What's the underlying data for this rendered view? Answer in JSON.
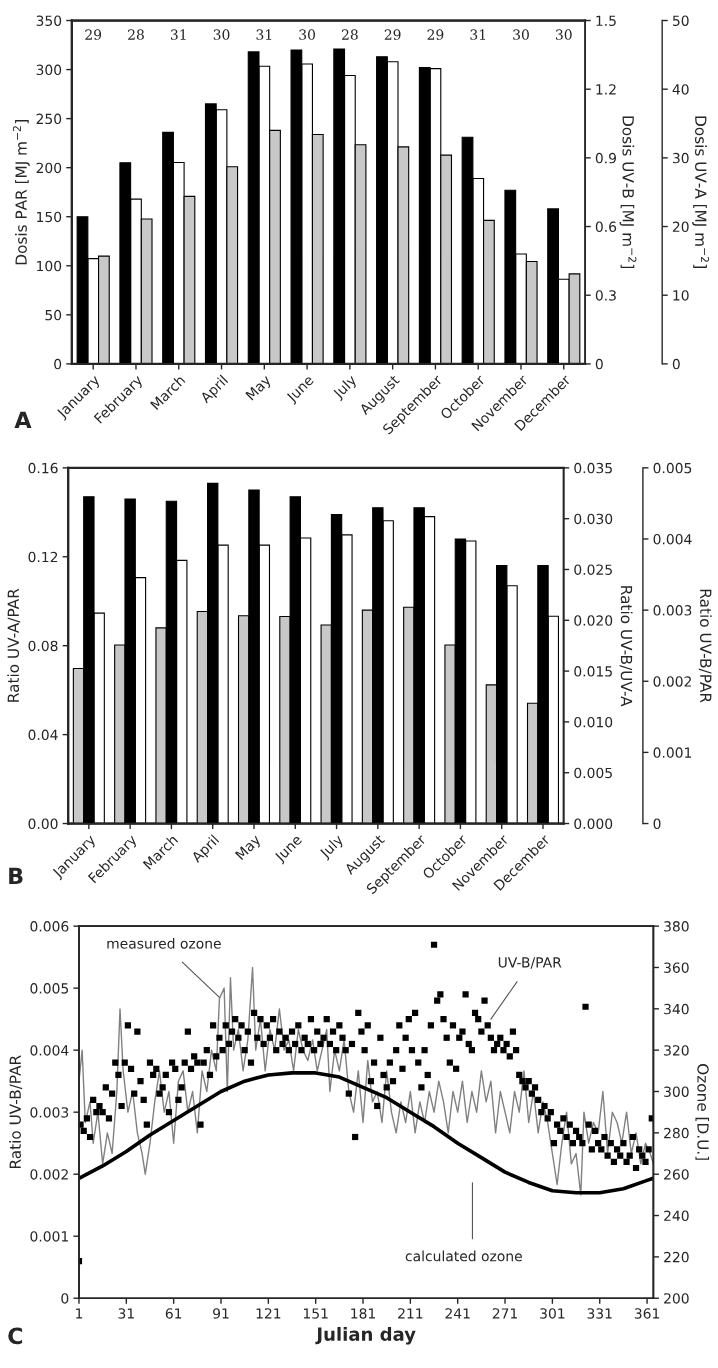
{
  "chart_data": [
    {
      "type": "bar",
      "categories": [
        "January",
        "February",
        "March",
        "April",
        "May",
        "June",
        "July",
        "August",
        "September",
        "October",
        "November",
        "December"
      ],
      "series": [
        {
          "color": "#000000",
          "axis": "y",
          "values": [
            150,
            205,
            236,
            265,
            318,
            320,
            321,
            313,
            302,
            231,
            177,
            158
          ]
        },
        {
          "color": "#ffffff",
          "axis": "y2",
          "values": [
            0.46,
            0.72,
            0.88,
            1.11,
            1.3,
            1.31,
            1.26,
            1.32,
            1.29,
            0.81,
            0.48,
            0.37
          ]
        },
        {
          "color": "#c8c8c8",
          "axis": "y3",
          "values": [
            15.7,
            21.1,
            24.4,
            28.7,
            34.0,
            33.4,
            31.9,
            31.6,
            30.4,
            20.9,
            14.9,
            13.1
          ]
        }
      ],
      "ylabel": "Dosis PAR [MJ m$^{−2}$]",
      "y2label": "Dosis UV-B [MJ m$^{−2}$]",
      "y3label": "Dosis UV-A [MJ m$^{−2}$]",
      "ylim": [
        0,
        350
      ],
      "yticks": [
        0,
        50,
        100,
        150,
        200,
        250,
        300,
        350
      ],
      "y2lim": [
        0,
        1.5
      ],
      "y2ticks": [
        0,
        0.3,
        0.6,
        0.9,
        1.2,
        1.5
      ],
      "y3lim": [
        0,
        50
      ],
      "y3ticks": [
        0,
        10,
        20,
        30,
        40,
        50
      ],
      "annotations": [
        "A",
        "29",
        "28",
        "31",
        "30",
        "31",
        "30",
        "28",
        "29",
        "29",
        "31",
        "30",
        "30"
      ]
    },
    {
      "type": "bar",
      "categories": [
        "January",
        "February",
        "March",
        "April",
        "May",
        "June",
        "July",
        "August",
        "September",
        "October",
        "November",
        "December"
      ],
      "series": [
        {
          "color": "#c8c8c8",
          "axis": "y3",
          "values": [
            0.00218,
            0.00251,
            0.00275,
            0.00298,
            0.00292,
            0.00291,
            0.00279,
            0.003,
            0.00304,
            0.00251,
            0.00195,
            0.00169
          ]
        },
        {
          "color": "#000000",
          "axis": "y",
          "values": [
            0.147,
            0.146,
            0.145,
            0.153,
            0.15,
            0.147,
            0.139,
            0.142,
            0.142,
            0.128,
            0.116,
            0.116
          ]
        },
        {
          "color": "#ffffff",
          "axis": "y2",
          "values": [
            0.0207,
            0.0242,
            0.0259,
            0.0274,
            0.0274,
            0.0281,
            0.0284,
            0.0298,
            0.0302,
            0.0278,
            0.0234,
            0.0204
          ]
        }
      ],
      "ylabel": "Ratio UV-A/PAR",
      "y2label": "Ratio UV-B/UV-A",
      "y3label": "Ratio UV-B/PAR",
      "ylim": [
        0,
        0.16
      ],
      "yticks": [
        {
          "value": 0,
          "label": "0.00"
        },
        {
          "value": 0.04,
          "label": "0.04"
        },
        {
          "value": 0.08,
          "label": "0.08"
        },
        {
          "value": 0.12,
          "label": "0.12"
        },
        {
          "value": 0.16,
          "label": "0.16"
        }
      ],
      "y2lim": [
        0,
        0.035
      ],
      "y2ticks": [
        {
          "value": 0,
          "label": "0.000"
        },
        {
          "value": 0.005,
          "label": "0.005"
        },
        {
          "value": 0.01,
          "label": "0.010"
        },
        {
          "value": 0.015,
          "label": "0.015"
        },
        {
          "value": 0.02,
          "label": "0.020"
        },
        {
          "value": 0.025,
          "label": "0.025"
        },
        {
          "value": 0.03,
          "label": "0.030"
        },
        {
          "value": 0.035,
          "label": "0.035"
        }
      ],
      "y3lim": [
        0,
        0.005
      ],
      "y3ticks": [
        0,
        0.001,
        0.002,
        0.003,
        0.004,
        0.005
      ],
      "annotations": [
        "B"
      ]
    },
    {
      "type": "scatter",
      "xlabel": "Julian day",
      "ylabel": "Ratio UV-B/PAR",
      "y2label": "Ozone [D.U.]",
      "xlim": [
        1,
        365
      ],
      "xticks": [
        1,
        31,
        61,
        91,
        121,
        151,
        181,
        211,
        241,
        271,
        301,
        331,
        361
      ],
      "ylim": [
        0,
        0.006
      ],
      "yticks": [
        0,
        0.001,
        0.002,
        0.003,
        0.004,
        0.005,
        0.006
      ],
      "y2lim": [
        200,
        380
      ],
      "y2ticks": [
        200,
        220,
        240,
        260,
        280,
        300,
        320,
        340,
        360,
        380
      ],
      "series": [
        {
          "type": "scatter",
          "marker": "square",
          "color": "#000000",
          "axis": "y",
          "x": [
            1,
            2,
            4,
            6,
            8,
            10,
            12,
            14,
            16,
            18,
            20,
            22,
            24,
            26,
            28,
            30,
            32,
            34,
            36,
            38,
            40,
            42,
            44,
            46,
            48,
            50,
            52,
            54,
            56,
            58,
            60,
            62,
            64,
            66,
            68,
            70,
            72,
            74,
            76,
            78,
            80,
            82,
            84,
            86,
            88,
            90,
            92,
            94,
            96,
            98,
            100,
            102,
            104,
            106,
            108,
            110,
            112,
            114,
            116,
            118,
            120,
            122,
            124,
            126,
            128,
            130,
            132,
            134,
            136,
            138,
            140,
            142,
            144,
            146,
            148,
            150,
            152,
            154,
            156,
            158,
            160,
            162,
            164,
            166,
            168,
            170,
            172,
            174,
            176,
            178,
            180,
            182,
            184,
            186,
            188,
            190,
            192,
            194,
            196,
            198,
            200,
            202,
            204,
            206,
            208,
            210,
            212,
            214,
            216,
            218,
            220,
            222,
            224,
            226,
            228,
            230,
            232,
            234,
            236,
            238,
            240,
            242,
            244,
            246,
            248,
            250,
            252,
            254,
            256,
            258,
            260,
            262,
            264,
            266,
            268,
            270,
            272,
            274,
            276,
            278,
            280,
            282,
            284,
            286,
            288,
            290,
            292,
            294,
            296,
            298,
            300,
            302,
            304,
            306,
            308,
            310,
            312,
            314,
            316,
            318,
            320,
            322,
            324,
            326,
            328,
            330,
            332,
            334,
            336,
            338,
            340,
            342,
            344,
            346,
            348,
            350,
            352,
            354,
            356,
            358,
            360,
            362,
            364
          ],
          "values": [
            0.0006,
            0.0028,
            0.0027,
            0.0029,
            0.0026,
            0.0032,
            0.003,
            0.0031,
            0.003,
            0.0034,
            0.0029,
            0.0033,
            0.0038,
            0.0036,
            0.0031,
            0.0038,
            0.0044,
            0.0037,
            0.0033,
            0.0043,
            0.0035,
            0.0032,
            0.0028,
            0.0038,
            0.0036,
            0.0037,
            0.0033,
            0.0034,
            0.0036,
            0.003,
            0.0038,
            0.0037,
            0.0032,
            0.0034,
            0.0038,
            0.0043,
            0.0037,
            0.0039,
            0.0038,
            0.0028,
            0.0038,
            0.004,
            0.0036,
            0.0044,
            0.0039,
            0.0042,
            0.004,
            0.0044,
            0.0041,
            0.0043,
            0.0045,
            0.0042,
            0.0044,
            0.004,
            0.0043,
            0.0038,
            0.0046,
            0.0042,
            0.0045,
            0.0041,
            0.0044,
            0.0042,
            0.0045,
            0.004,
            0.0043,
            0.0041,
            0.0042,
            0.004,
            0.0043,
            0.0041,
            0.0044,
            0.004,
            0.0042,
            0.0041,
            0.0045,
            0.004,
            0.0043,
            0.0041,
            0.0042,
            0.0045,
            0.0041,
            0.0043,
            0.004,
            0.0044,
            0.0042,
            0.004,
            0.0033,
            0.0041,
            0.0026,
            0.0046,
            0.0043,
            0.004,
            0.0044,
            0.0035,
            0.0038,
            0.0031,
            0.0042,
            0.0036,
            0.0034,
            0.0038,
            0.0035,
            0.004,
            0.0044,
            0.0037,
            0.0042,
            0.0045,
            0.004,
            0.0046,
            0.0038,
            0.0034,
            0.004,
            0.0036,
            0.0044,
            0.0057,
            0.0048,
            0.0049,
            0.0045,
            0.0042,
            0.0038,
            0.0044,
            0.0037,
            0.0042,
            0.0043,
            0.0049,
            0.0041,
            0.004,
            0.0046,
            0.0045,
            0.0043,
            0.0048,
            0.0044,
            0.0042,
            0.004,
            0.0041,
            0.0042,
            0.004,
            0.0041,
            0.0039,
            0.0043,
            0.004,
            0.0036,
            0.0035,
            0.0034,
            0.0035,
            0.0033,
            0.0034,
            0.0032,
            0.003,
            0.0031,
            0.0029,
            0.003,
            0.0025,
            0.0028,
            0.0027,
            0.0029,
            0.0026,
            0.0028,
            0.0025,
            0.0027,
            0.0026,
            0.0025,
            0.0047,
            0.0028,
            0.0024,
            0.0027,
            0.0025,
            0.0024,
            0.0026,
            0.0023,
            0.0025,
            0.0022,
            0.0024,
            0.0023,
            0.0025,
            0.0022,
            0.0023,
            0.0026,
            0.0021,
            0.0024,
            0.0023,
            0.0022,
            0.0024,
            0.0029
          ]
        },
        {
          "type": "line",
          "color": "#808080",
          "axis": "y2",
          "x": [
            1,
            3,
            5,
            8,
            10,
            13,
            16,
            19,
            22,
            25,
            27,
            29,
            32,
            35,
            38,
            41,
            43,
            46,
            49,
            52,
            55,
            58,
            61,
            64,
            67,
            70,
            73,
            76,
            79,
            82,
            85,
            88,
            90,
            93,
            95,
            97,
            99,
            102,
            105,
            108,
            111,
            113,
            116,
            119,
            122,
            125,
            128,
            131,
            134,
            137,
            140,
            143,
            146,
            149,
            152,
            155,
            158,
            160,
            163,
            166,
            169,
            172,
            175,
            178,
            181,
            184,
            187,
            190,
            193,
            196,
            199,
            202,
            205,
            208,
            211,
            214,
            217,
            220,
            223,
            226,
            229,
            232,
            235,
            238,
            241,
            244,
            247,
            250,
            253,
            256,
            259,
            262,
            265,
            268,
            271,
            274,
            277,
            280,
            283,
            286,
            289,
            292,
            295,
            298,
            301,
            304,
            307,
            310,
            313,
            316,
            319,
            321,
            324,
            327,
            330,
            333,
            336,
            339,
            342,
            345,
            348,
            351,
            354,
            357,
            360,
            363,
            365
          ],
          "values": [
            305,
            320,
            285,
            295,
            275,
            290,
            265,
            280,
            270,
            300,
            340,
            310,
            290,
            300,
            280,
            270,
            260,
            275,
            295,
            310,
            290,
            300,
            275,
            305,
            310,
            290,
            300,
            280,
            310,
            300,
            320,
            310,
            345,
            350,
            300,
            355,
            320,
            330,
            310,
            325,
            360,
            320,
            335,
            310,
            330,
            320,
            340,
            320,
            325,
            310,
            330,
            320,
            315,
            325,
            310,
            320,
            330,
            300,
            320,
            310,
            325,
            300,
            290,
            310,
            285,
            315,
            295,
            300,
            285,
            310,
            290,
            280,
            295,
            285,
            300,
            280,
            295,
            285,
            300,
            290,
            305,
            295,
            280,
            300,
            290,
            305,
            285,
            300,
            290,
            310,
            295,
            305,
            280,
            300,
            290,
            280,
            300,
            290,
            310,
            285,
            300,
            280,
            295,
            285,
            270,
            255,
            275,
            290,
            265,
            270,
            250,
            290,
            275,
            285,
            280,
            300,
            270,
            290,
            285,
            275,
            290,
            270,
            280,
            265,
            275,
            270,
            265
          ]
        },
        {
          "type": "line",
          "color": "#000000",
          "axis": "y2",
          "x": [
            1,
            16,
            31,
            46,
            61,
            76,
            91,
            106,
            121,
            136,
            151,
            166,
            181,
            196,
            211,
            226,
            241,
            256,
            271,
            286,
            301,
            316,
            331,
            346,
            361,
            365
          ],
          "values": [
            258,
            264,
            271,
            279,
            286,
            293,
            300,
            305,
            308,
            309,
            309,
            307,
            302,
            297,
            290,
            283,
            275,
            268,
            261,
            256,
            252,
            251,
            251,
            253,
            257,
            258
          ]
        }
      ],
      "annotations": [
        "C",
        {
          "text": "measured ozone",
          "x": 90,
          "y": 0.00485
        },
        {
          "text": "UV-B/PAR",
          "x": 262,
          "y": 0.0045
        },
        "calculated ozone"
      ]
    }
  ]
}
